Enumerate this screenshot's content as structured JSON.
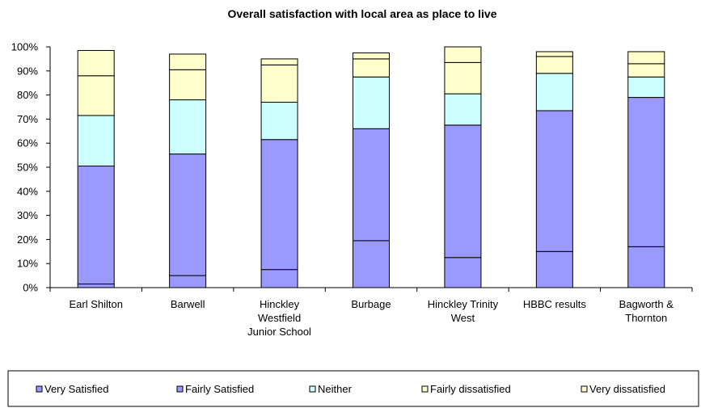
{
  "chart_data": {
    "type": "bar",
    "stacked": true,
    "title": "Overall satisfaction with local area as place to live",
    "xlabel": "",
    "ylabel": "",
    "ylim": [
      0,
      100
    ],
    "y_ticks": [
      "0%",
      "10%",
      "20%",
      "30%",
      "40%",
      "50%",
      "60%",
      "70%",
      "80%",
      "90%",
      "100%"
    ],
    "grid": false,
    "legend_position": "bottom",
    "categories": [
      [
        "Earl Shilton"
      ],
      [
        "Barwell"
      ],
      [
        "Hinckley",
        "Westfield",
        "Junior School"
      ],
      [
        "Burbage"
      ],
      [
        "Hinckley Trinity",
        "West"
      ],
      [
        "HBBC results"
      ],
      [
        "Bagworth &",
        "Thornton"
      ]
    ],
    "series": [
      {
        "name": "Very Satisfied",
        "color": "#9999ff",
        "values": [
          1.5,
          5,
          7.5,
          19.5,
          12.5,
          15,
          17
        ]
      },
      {
        "name": "Fairly Satisfied",
        "color": "#9999ff",
        "values": [
          49,
          50.5,
          54,
          46.5,
          55,
          58.5,
          62
        ]
      },
      {
        "name": "Neither",
        "color": "#ccffff",
        "values": [
          21,
          22.5,
          15.5,
          21.5,
          13,
          15.5,
          8.5
        ]
      },
      {
        "name": "Fairly dissatisfied",
        "color": "#ffffcc",
        "values": [
          16.5,
          12.5,
          15.5,
          7.5,
          13,
          7,
          5.5
        ]
      },
      {
        "name": "Very dissatisfied",
        "color": "#ffffcc",
        "values": [
          10.5,
          6.5,
          2.5,
          2.5,
          6.5,
          2,
          5
        ]
      }
    ]
  }
}
